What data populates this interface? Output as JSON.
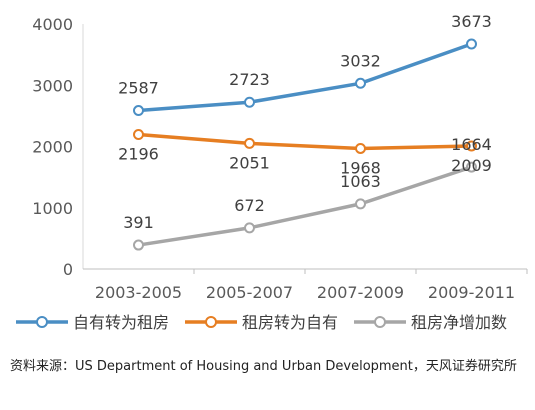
{
  "chart_data": {
    "type": "line",
    "categories": [
      "2003-2005",
      "2005-2007",
      "2007-2009",
      "2009-2011"
    ],
    "ylim": [
      0,
      4000
    ],
    "yticks": [
      0,
      1000,
      2000,
      3000,
      4000
    ],
    "grid": false,
    "legend_position": "bottom",
    "series": [
      {
        "name": "自有转为租房",
        "values": [
          2587,
          2723,
          3032,
          3673
        ],
        "color": "#4a8ec4",
        "label_position": "above"
      },
      {
        "name": "租房转为自有",
        "values": [
          2196,
          2051,
          1968,
          2009
        ],
        "color": "#e67e22",
        "label_position": "below"
      },
      {
        "name": "租房净增加数",
        "values": [
          391,
          672,
          1063,
          1664
        ],
        "color": "#a6a6a6",
        "label_position": "above"
      }
    ]
  },
  "source_note": "资料来源：US Department of Housing and Urban Development，天风证券研究所"
}
